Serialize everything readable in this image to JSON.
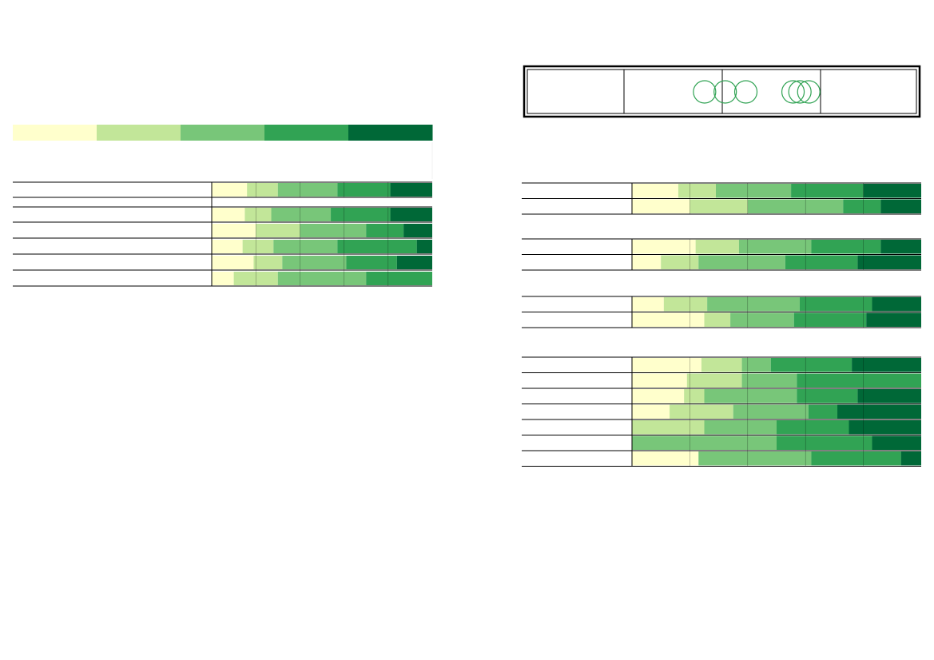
{
  "colors": {
    "scale": [
      "#ffffcc",
      "#c2e699",
      "#78c679",
      "#31a354",
      "#006837"
    ],
    "rule": "#000000",
    "circle": "#31a354"
  },
  "legend": {
    "swatches": [
      "#ffffcc",
      "#c2e699",
      "#78c679",
      "#31a354",
      "#006837"
    ]
  },
  "chart_data": [
    {
      "type": "bar",
      "stacked": "percent",
      "orientation": "horizontal",
      "title": "",
      "xlabel": "",
      "ylabel": "",
      "xlim": [
        0,
        100
      ],
      "grid": true,
      "rows": [
        {
          "values": [
            16,
            14,
            27,
            24,
            19
          ]
        },
        {
          "values": [
            15,
            12,
            27,
            27,
            19
          ]
        },
        {
          "values": [
            20,
            20,
            30,
            17,
            13
          ]
        },
        {
          "values": [
            14,
            14,
            29,
            36,
            7
          ]
        },
        {
          "values": [
            19,
            13,
            29,
            23,
            16
          ]
        },
        {
          "values": [
            10,
            20,
            40,
            30,
            0
          ]
        }
      ]
    },
    {
      "type": "bar",
      "stacked": "percent",
      "orientation": "horizontal",
      "title": "",
      "xlabel": "",
      "ylabel": "",
      "xlim": [
        0,
        100
      ],
      "grid": true,
      "groups": [
        {
          "rows": [
            {
              "values": [
                16,
                13,
                26,
                25,
                20
              ]
            },
            {
              "values": [
                20,
                20,
                33,
                13,
                14
              ]
            }
          ]
        },
        {
          "rows": [
            {
              "values": [
                22,
                15,
                25,
                24,
                14
              ]
            },
            {
              "values": [
                10,
                13,
                30,
                25,
                22
              ]
            }
          ]
        },
        {
          "rows": [
            {
              "values": [
                11,
                15,
                32,
                25,
                17
              ]
            },
            {
              "values": [
                25,
                9,
                22,
                25,
                19
              ]
            }
          ]
        },
        {
          "rows": [
            {
              "values": [
                24,
                14,
                10,
                28,
                24
              ]
            },
            {
              "values": [
                19,
                19,
                19,
                43,
                0
              ]
            },
            {
              "values": [
                18,
                7,
                32,
                21,
                22
              ]
            },
            {
              "values": [
                13,
                22,
                26,
                10,
                29
              ]
            },
            {
              "values": [
                0,
                25,
                25,
                25,
                25
              ]
            },
            {
              "values": [
                0,
                0,
                50,
                33,
                17
              ]
            },
            {
              "values": [
                23,
                0,
                39,
                31,
                7
              ]
            }
          ]
        }
      ]
    },
    {
      "type": "scatter",
      "title": "",
      "xlabel": "",
      "ylabel": "",
      "columns": 4,
      "points": [
        {
          "column": 2,
          "position": 0.82
        },
        {
          "column": 2,
          "position": 1.03
        },
        {
          "column": 3,
          "position": 0.24
        },
        {
          "column": 3,
          "position": 0.72
        },
        {
          "column": 3,
          "position": 0.79
        },
        {
          "column": 3,
          "position": 0.88
        }
      ]
    }
  ]
}
